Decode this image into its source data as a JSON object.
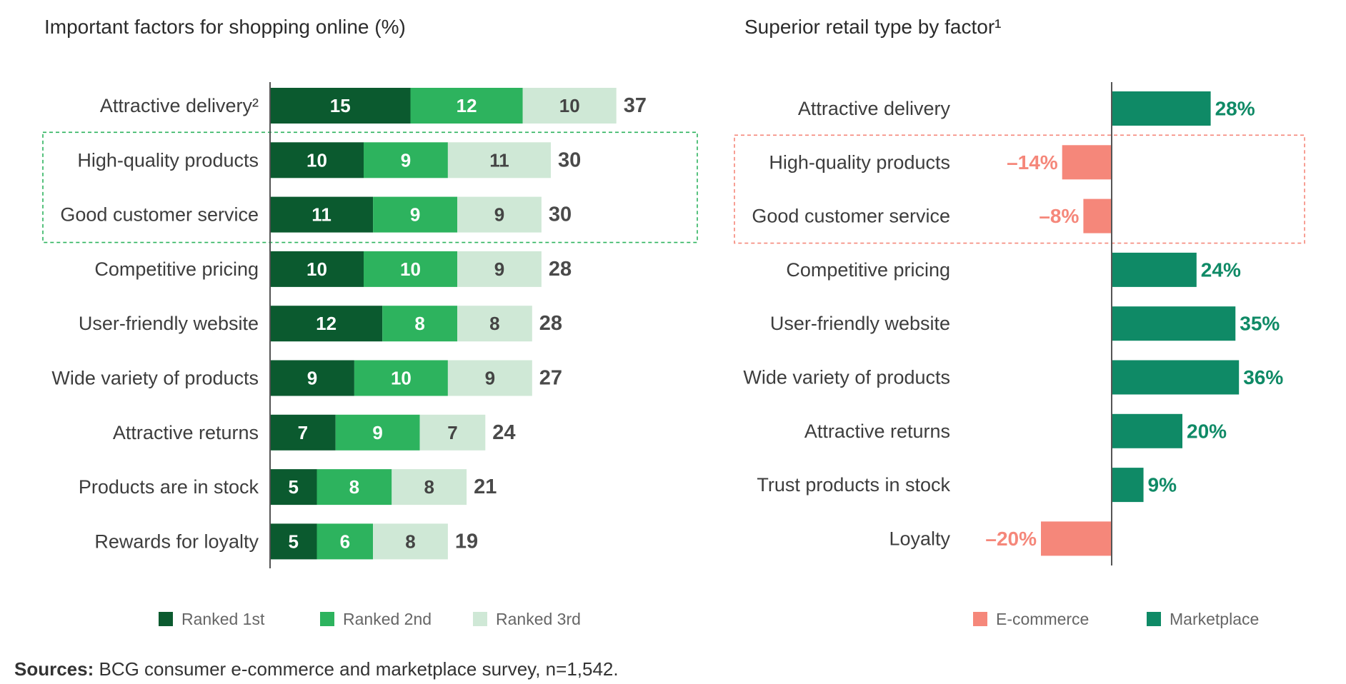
{
  "colors": {
    "rank1": "#0b5a2f",
    "rank2": "#2db35e",
    "rank3": "#cfe8d6",
    "rank3_text": "#444444",
    "ecommerce": "#f5877a",
    "marketplace": "#0f8a66",
    "label_text": "#3d3d3d",
    "total_text": "#4a4a4a",
    "axis": "#555555",
    "left_box": "#2db35e",
    "right_box": "#f5877a"
  },
  "chart_data": [
    {
      "type": "bar",
      "orientation": "horizontal",
      "stacked": true,
      "title": "Important factors for shopping online (%)",
      "categories": [
        "Attractive delivery²",
        "High-quality products",
        "Good customer service",
        "Competitive pricing",
        "User-friendly website",
        "Wide variety of products",
        "Attractive returns",
        "Products are in stock",
        "Rewards for loyalty"
      ],
      "series": [
        {
          "name": "Ranked 1st",
          "values": [
            15,
            10,
            11,
            10,
            12,
            9,
            7,
            5,
            5
          ]
        },
        {
          "name": "Ranked 2nd",
          "values": [
            12,
            9,
            9,
            10,
            8,
            10,
            9,
            8,
            6
          ]
        },
        {
          "name": "Ranked 3rd",
          "values": [
            10,
            11,
            9,
            9,
            8,
            9,
            7,
            8,
            8
          ]
        }
      ],
      "totals": [
        37,
        30,
        30,
        28,
        28,
        27,
        24,
        21,
        19
      ],
      "highlighted_categories": [
        "High-quality products",
        "Good customer service"
      ],
      "legend": [
        "Ranked 1st",
        "Ranked 2nd",
        "Ranked 3rd"
      ],
      "legend_position": "bottom",
      "grid": false
    },
    {
      "type": "bar",
      "orientation": "horizontal",
      "diverging": true,
      "title": "Superior retail type by factor¹",
      "categories": [
        "Attractive delivery",
        "High-quality products",
        "Good customer service",
        "Competitive pricing",
        "User-friendly website",
        "Wide variety of products",
        "Attractive returns",
        "Trust products in stock",
        "Loyalty"
      ],
      "values": [
        28,
        -14,
        -8,
        24,
        35,
        36,
        20,
        9,
        -20
      ],
      "value_labels": [
        "28%",
        "–14%",
        "–8%",
        "24%",
        "35%",
        "36%",
        "20%",
        "9%",
        "–20%"
      ],
      "highlighted_categories": [
        "High-quality products",
        "Good customer service"
      ],
      "legend": [
        "E-commerce",
        "Marketplace"
      ],
      "legend_position": "bottom",
      "grid": false
    }
  ],
  "sources": {
    "label": "Sources:",
    "text": " BCG consumer e-commerce and marketplace survey, n=1,542."
  }
}
